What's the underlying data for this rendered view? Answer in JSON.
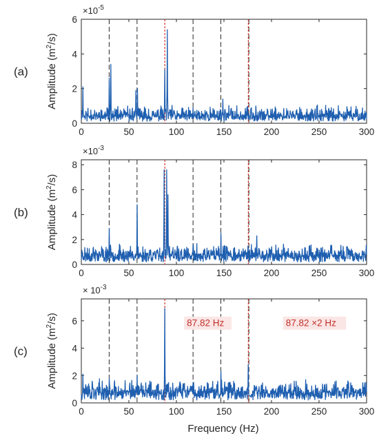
{
  "figure": {
    "xlabel": "Frequency (Hz)"
  },
  "colors": {
    "signal": "#1f5fb0",
    "black_lines": "#262626",
    "red_lines": "#d0352b",
    "annotation_bg": "#fbe6e6",
    "annotation_text": "#c0312a"
  },
  "chart_data": [
    {
      "type": "line",
      "panel_label": "(a)",
      "ylabel_main": "Amplitude (m",
      "ylabel_sup": "2",
      "ylabel_tail": "/s)",
      "exponent_prefix": "×10",
      "exponent_power": "-5",
      "xlim": [
        0,
        300
      ],
      "ylim": [
        0,
        6
      ],
      "x_ticks": [
        0,
        50,
        100,
        150,
        200,
        250,
        300
      ],
      "y_ticks": [
        0,
        2,
        4,
        6
      ],
      "grid": false,
      "black_dashed_lines": [
        29.3,
        58.6,
        117.5,
        146.7,
        176.2
      ],
      "red_dashed_lines": [
        87.82,
        175.64
      ],
      "peaks": [
        [
          1.7,
          2.1
        ],
        [
          29.3,
          2.6
        ],
        [
          31.2,
          3.4
        ],
        [
          57.5,
          1.9
        ],
        [
          59.2,
          2.0
        ],
        [
          87.8,
          3.1
        ],
        [
          90.6,
          5.4
        ],
        [
          117.4,
          0.9
        ],
        [
          146.5,
          0.7
        ],
        [
          148.8,
          1.4
        ],
        [
          178.7,
          0.9
        ],
        [
          183.4,
          1.0
        ]
      ],
      "noise": {
        "base": 0.45,
        "amp": 0.55,
        "seed": 11
      },
      "annotations": []
    },
    {
      "type": "line",
      "panel_label": "(b)",
      "ylabel_main": "Amplitude (m",
      "ylabel_sup": "2",
      "ylabel_tail": "/s)",
      "exponent_prefix": "×10",
      "exponent_power": "-3",
      "xlim": [
        0,
        300
      ],
      "ylim": [
        0,
        8.4
      ],
      "x_ticks": [
        0,
        50,
        100,
        150,
        200,
        250,
        300
      ],
      "y_ticks": [
        0,
        2,
        4,
        6,
        8
      ],
      "grid": false,
      "black_dashed_lines": [
        29.3,
        58.6,
        117.5,
        146.7,
        176.2
      ],
      "red_dashed_lines": [
        87.82,
        175.64
      ],
      "peaks": [
        [
          29.3,
          2.9
        ],
        [
          58.6,
          4.8
        ],
        [
          87.0,
          7.6
        ],
        [
          89.6,
          7.6
        ],
        [
          91.2,
          5.6
        ],
        [
          117.4,
          1.5
        ],
        [
          146.7,
          2.5
        ],
        [
          178.8,
          1.6
        ],
        [
          184.6,
          2.3
        ]
      ],
      "noise": {
        "base": 0.75,
        "amp": 0.85,
        "seed": 23
      },
      "annotations": []
    },
    {
      "type": "line",
      "panel_label": "(c)",
      "ylabel_main": "Amplitude (m",
      "ylabel_sup": "2",
      "ylabel_tail": "/s)",
      "exponent_prefix": "× 10",
      "exponent_power": "-3",
      "xlim": [
        0,
        300
      ],
      "ylim": [
        0,
        7.6
      ],
      "x_ticks": [
        0,
        50,
        100,
        150,
        200,
        250,
        300
      ],
      "y_ticks": [
        0,
        2,
        4,
        6
      ],
      "grid": false,
      "black_dashed_lines": [
        29.3,
        58.6,
        117.5,
        146.7,
        176.2
      ],
      "red_dashed_lines": [
        87.82,
        175.64
      ],
      "peaks": [
        [
          1.6,
          2.1
        ],
        [
          29.3,
          1.8
        ],
        [
          58.6,
          2.0
        ],
        [
          87.82,
          6.9
        ],
        [
          146.7,
          2.3
        ],
        [
          175.64,
          2.8
        ],
        [
          236.0,
          1.7
        ],
        [
          281.0,
          1.5
        ]
      ],
      "noise": {
        "base": 0.8,
        "amp": 0.9,
        "seed": 37
      },
      "annotations": [
        {
          "text": "87.82 Hz",
          "x": 111,
          "y": 5.6
        },
        {
          "text": "87.82 ×2 Hz",
          "x": 215,
          "y": 5.6
        }
      ]
    }
  ]
}
